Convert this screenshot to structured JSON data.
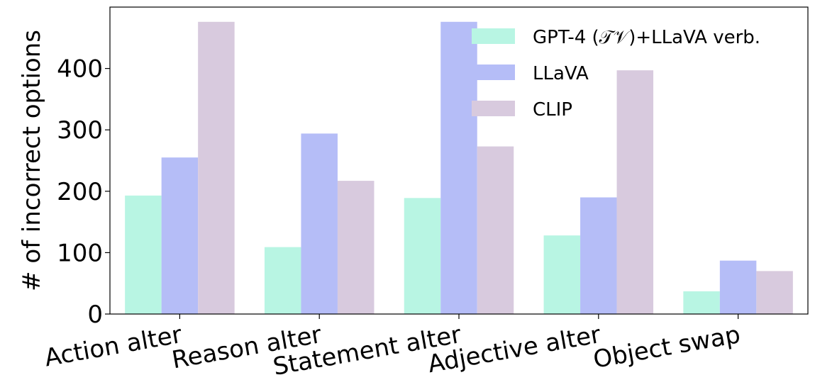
{
  "chart_data": {
    "type": "bar",
    "title": "",
    "xlabel": "",
    "ylabel": "# of incorrect options",
    "categories": [
      "Action alter",
      "Reason alter",
      "Statement alter",
      "Adjective alter",
      "Object swap"
    ],
    "series": [
      {
        "name": "GPT-4 (𝒯𝒱)+LLaVA verb.",
        "color": "#b8f5e3",
        "values": [
          193,
          109,
          189,
          128,
          37
        ]
      },
      {
        "name": "LLaVA",
        "color": "#b5bdf7",
        "values": [
          255,
          294,
          476,
          190,
          87
        ]
      },
      {
        "name": "CLIP",
        "color": "#d8cade",
        "values": [
          476,
          217,
          273,
          397,
          70
        ]
      }
    ],
    "ylim": [
      0,
      500
    ],
    "yticks": [
      "0",
      "100",
      "200",
      "300",
      "400"
    ],
    "legend_position": "top-right",
    "grid": false
  }
}
